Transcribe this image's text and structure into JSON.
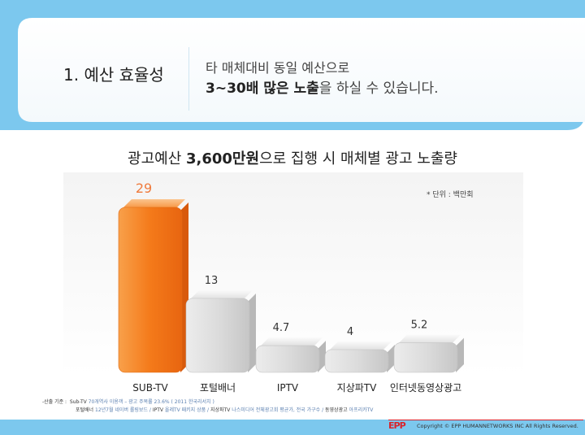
{
  "section": {
    "title": "1. 예산 효율성",
    "desc_line1": "타 매체대비 동일 예산으로",
    "desc_line2_bold": "3~30배 많은 노출",
    "desc_line2_rest": "을 하실 수 있습니다."
  },
  "chart_data": {
    "type": "bar",
    "title_prefix": "광고예산 ",
    "title_bold": "3,600만원",
    "title_suffix": "으로 집행 시 매체별 광고 노출량",
    "unit_note": "* 단위 : 백만회",
    "categories": [
      "SUB-TV",
      "포털배너",
      "IPTV",
      "지상파TV",
      "인터넷동영상광고"
    ],
    "values": [
      29,
      13,
      4.7,
      4,
      5.2
    ],
    "value_labels": [
      "29",
      "13",
      "4.7",
      "4",
      "5.2"
    ],
    "highlight_index": 0,
    "ylim": [
      0,
      30
    ],
    "grid": false,
    "legend": "none",
    "colors": {
      "highlight": "#f47a20",
      "highlight_label": "#ef7a3c",
      "normal": "#d9d9d9",
      "normal_label": "#333333"
    }
  },
  "footer": {
    "note_line1_label": "-산출 기준 :",
    "note_line1_a": "Sub-TV",
    "note_line1_b": "70개역사 이용객 – 광고 주목률 23.6% ( 2011 한국리서치 )",
    "note_line2_a": "포털배너",
    "note_line2_b": "12년7월 네이버 롤링보드 /",
    "note_line2_c": "IPTV",
    "note_line2_d": "올레TV 패키지 상품 /",
    "note_line2_e": "지상파TV",
    "note_line2_f": "나스미디어 전체광고회 평균가, 전국 가구수 /",
    "note_line2_g": "동영상광고",
    "note_line2_h": "아프리카TV",
    "logo": "EPP",
    "copyright": "Copyright © EPP HUMANNETWORKS INC All Rights Reserved."
  }
}
